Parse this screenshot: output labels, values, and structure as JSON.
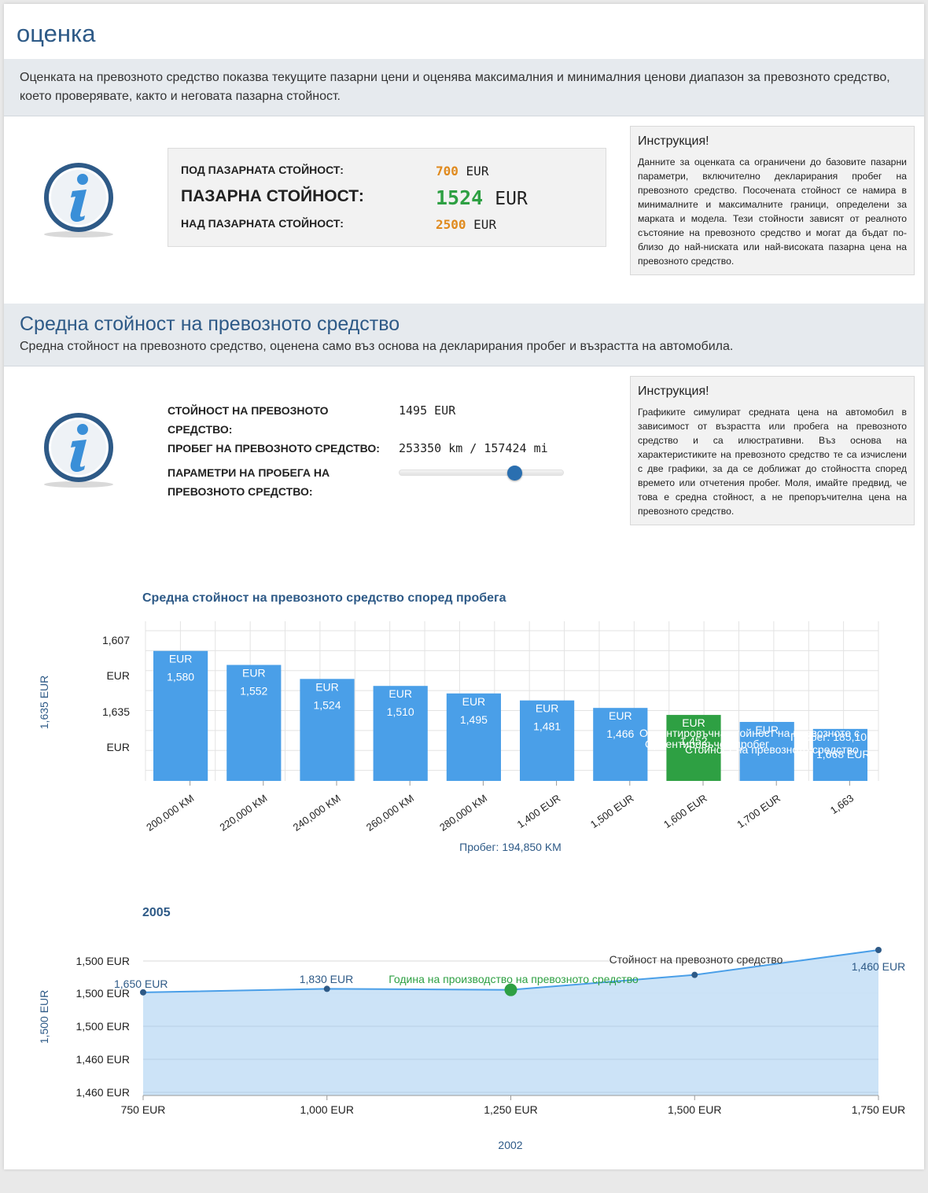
{
  "header": {
    "title": "оценка"
  },
  "intro": {
    "text": "Оценката на превозното средство показва текущите пазарни цени и оценява максималния и минималния ценови диапазон за превозното средство, което проверявате, както и неговата пазарна стойност."
  },
  "valuation": {
    "below_label": "ПОД ПАЗАРНАТА СТОЙНОСТ:",
    "below_value": "700",
    "market_label": "ПАЗАРНА СТОЙНОСТ:",
    "market_value": "1524",
    "above_label": "НАД ПАЗАРНАТА СТОЙНОСТ:",
    "above_value": "2500",
    "currency": "EUR",
    "colors": {
      "below": "#e08a1e",
      "market": "#2ea043",
      "above": "#e08a1e"
    }
  },
  "instruction1": {
    "title": "Инструкция!",
    "text": "Данните за оценката са ограничени до базовите пазарни параметри, включително декларирания пробег на превозното средство. Посочената стойност се намира в минималните и максималните граници, определени за марката и модела. Тези стойности зависят от реалното състояние на превозното средство и могат да бъдат по-близо до най-ниската или най-високата пазарна цена на превозното средство."
  },
  "average": {
    "title": "Средна стойност на превозното средство",
    "subtitle": "Средна стойност на превозното средство, оценена само въз основа на декларирания пробег и възрастта на автомобила.",
    "value_label": "СТОЙНОСТ НА ПРЕВОЗНОТО СРЕДСТВО:",
    "value": "1495 EUR",
    "mileage_label": "ПРОБЕГ НА ПРЕВОЗНОТО СРЕДСТВО:",
    "mileage": "253350 km / 157424 mi",
    "params_label": "ПАРАМЕТРИ НА ПРОБЕГА НА ПРЕВОЗНОТО СРЕДСТВО:",
    "slider_value": 0.7
  },
  "instruction2": {
    "title": "Инструкция!",
    "text": "Графиките симулират средната цена на автомобил в зависимост от възрастта или пробега на превозното средство и са илюстративни. Въз основа на характеристиките на превозното средство те са изчислени с две графики, за да се доближат до стойността според времето или отчетения пробег. Моля, имайте предвид, че това е средна стойност, а не препоръчителна цена на превозното средство."
  },
  "chart_data": [
    {
      "type": "bar",
      "title": "Средна стойност на превозното средство според пробега",
      "ylabel": "1,635 EUR",
      "xlabel": "Пробег: 194,850 KM",
      "y_tick_labels": [
        "1,607",
        "EUR",
        "1,635",
        "EUR"
      ],
      "categories": [
        "200,000 KM",
        "220,000 KM",
        "240,000 KM",
        "260,000 KM",
        "280,000 KM",
        "1,400 EUR",
        "1,500 EUR",
        "1,600 EUR",
        "1,700 EUR",
        "1,663"
      ],
      "values": [
        1580,
        1552,
        1524,
        1510,
        1495,
        1481,
        1466,
        1452,
        1438,
        1424
      ],
      "bar_labels_top": [
        "EUR",
        "EUR",
        "EUR",
        "EUR",
        "EUR",
        "EUR",
        "EUR",
        "EUR",
        "EUR",
        ""
      ],
      "bar_labels_value": [
        "1,580",
        "1,552",
        "1,524",
        "1,510",
        "1,495",
        "1,481",
        "1,466",
        "1,452",
        "",
        ""
      ],
      "highlight_index": 7,
      "colors": {
        "bar": "#4a9fe8",
        "highlight": "#2ea043"
      },
      "tooltip_lines": [
        "Ориентировъчна стойност на превозното с",
        "Ориентировъчен пробег",
        "Стойност на превозното средство"
      ],
      "tooltip_right_lines": [
        "Пробег: 185,10",
        "1,668 EUR"
      ],
      "grid": true
    },
    {
      "type": "area",
      "title": "2005",
      "ylabel": "1,500 EUR",
      "xlabel": "2002",
      "y_tick_labels": [
        "1,500 EUR",
        "1,500 EUR",
        "1,500 EUR",
        "1,460 EUR",
        "1,460 EUR"
      ],
      "x_tick_labels": [
        "750 EUR",
        "1,000 EUR",
        "1,250 EUR",
        "1,500 EUR",
        "1,750 EUR"
      ],
      "x": [
        750,
        1000,
        1250,
        1500,
        1750
      ],
      "values": [
        1495,
        1502,
        1500,
        1530,
        1580
      ],
      "point_labels": [
        "1,650 EUR",
        "1,830 EUR",
        "",
        "",
        "1,460 EUR"
      ],
      "highlight_index": 2,
      "highlight_label": "Година на производство на превозното средство",
      "series_label": "Стойност на превозното средство",
      "colors": {
        "line": "#4a9fe8",
        "fill": "#c9e1f7",
        "highlight": "#2ea043"
      },
      "grid": true
    }
  ]
}
